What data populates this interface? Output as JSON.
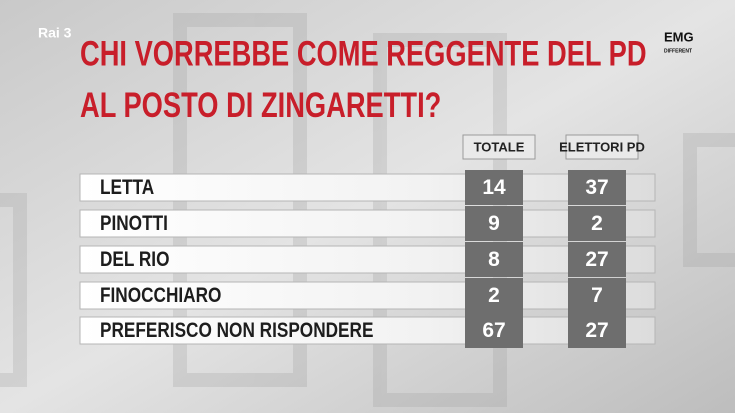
{
  "logo": "Rai 3",
  "source": {
    "name": "EMG",
    "tagline": "DIFFERENT"
  },
  "title": [
    "CHI VORREBBE COME REGGENTE DEL PD",
    "AL POSTO DI ZINGARETTI?"
  ],
  "table": {
    "columns": [
      "TOTALE",
      "ELETTORI PD"
    ],
    "rows": [
      [
        "LETTA",
        14,
        37
      ],
      [
        "PINOTTI",
        9,
        2
      ],
      [
        "DEL RIO",
        8,
        27
      ],
      [
        "FINOCCHIARO",
        2,
        7
      ],
      [
        "PREFERISCO NON RISPONDERE",
        67,
        27
      ]
    ]
  }
}
